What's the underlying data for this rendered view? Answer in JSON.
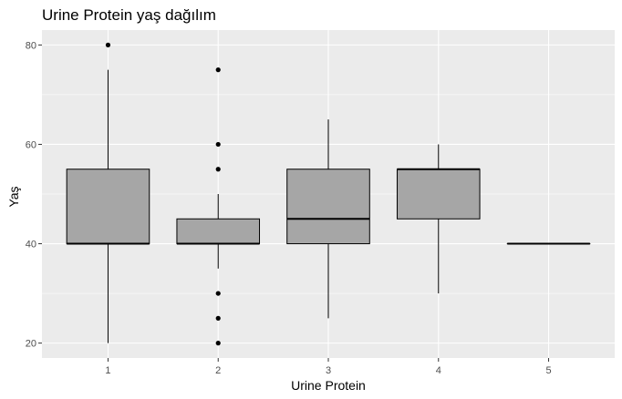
{
  "chart_data": {
    "type": "boxplot",
    "title": "Urine Protein yaş dağılım",
    "xlabel": "Urine Protein",
    "ylabel": "Yaş",
    "categories": [
      "1",
      "2",
      "3",
      "4",
      "5"
    ],
    "ylim": [
      17,
      83
    ],
    "yticks": [
      20,
      40,
      60,
      80
    ],
    "ytick_labels": [
      "20",
      "40",
      "60",
      "80"
    ],
    "grid": true,
    "boxes": [
      {
        "category": "1",
        "whisker_low": 20,
        "q1": 40,
        "median": 40,
        "q3": 55,
        "whisker_high": 75,
        "outliers": [
          80
        ]
      },
      {
        "category": "2",
        "whisker_low": 35,
        "q1": 40,
        "median": 40,
        "q3": 45,
        "whisker_high": 50,
        "outliers": [
          75,
          60,
          55,
          30,
          25,
          20
        ]
      },
      {
        "category": "3",
        "whisker_low": 25,
        "q1": 40,
        "median": 45,
        "q3": 55,
        "whisker_high": 65,
        "outliers": []
      },
      {
        "category": "4",
        "whisker_low": 30,
        "q1": 45,
        "median": 55,
        "q3": 55,
        "whisker_high": 60,
        "outliers": []
      },
      {
        "category": "5",
        "whisker_low": 40,
        "q1": 40,
        "median": 40,
        "q3": 40,
        "whisker_high": 40,
        "outliers": []
      }
    ],
    "colors": {
      "panel": "#ebebeb",
      "grid": "#ffffff",
      "box_fill": "#a6a6a6",
      "line": "#000000",
      "tick_text": "#4d4d4d",
      "tick": "#333333"
    }
  }
}
